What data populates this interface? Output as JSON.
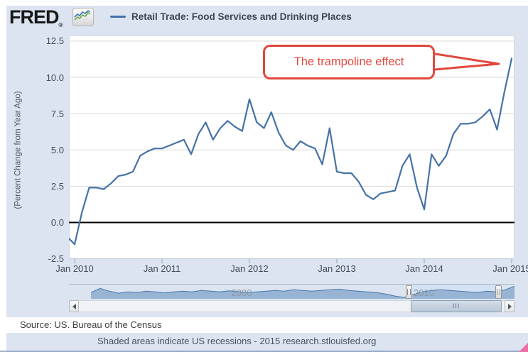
{
  "header": {
    "logo": "FRED",
    "registered_mark": "®",
    "legend_title": "Retail Trade: Food Services and Drinking Places"
  },
  "annotation": {
    "text": "The trampoline effect",
    "color": "#e2473c"
  },
  "chart_data": {
    "type": "line",
    "title": "Retail Trade: Food Services and Drinking Places",
    "ylabel": "(Percent Change from Year Ago)",
    "ylim": [
      -2.5,
      12.5
    ],
    "grid": true,
    "line_color": "#4572a7",
    "frequency": "monthly",
    "x_start": "2009-12",
    "x_end": "2015-01",
    "x_tick_labels": [
      "Jan 2010",
      "Jan 2011",
      "Jan 2012",
      "Jan 2013",
      "Jan 2014",
      "Jan 2015"
    ],
    "y_ticks": [
      {
        "label": "12.5",
        "v": 12.5
      },
      {
        "label": "10.0",
        "v": 10.0
      },
      {
        "label": "7.5",
        "v": 7.5
      },
      {
        "label": "5.0",
        "v": 5.0
      },
      {
        "label": "2.5",
        "v": 2.5
      },
      {
        "label": "0.0",
        "v": 0.0
      },
      {
        "label": "-2.5",
        "v": -2.5
      }
    ],
    "values": [
      -1.0,
      -1.5,
      0.7,
      2.4,
      2.4,
      2.3,
      2.7,
      3.2,
      3.3,
      3.5,
      4.6,
      4.9,
      5.1,
      5.1,
      5.3,
      5.5,
      5.7,
      4.7,
      6.1,
      6.9,
      5.7,
      6.5,
      7.0,
      6.6,
      6.3,
      8.5,
      6.9,
      6.5,
      7.6,
      6.2,
      5.3,
      5.0,
      5.6,
      5.3,
      5.1,
      4.0,
      6.5,
      3.5,
      3.4,
      3.4,
      2.8,
      1.9,
      1.6,
      2.0,
      2.1,
      2.2,
      3.9,
      4.7,
      2.4,
      0.9,
      4.7,
      3.9,
      4.6,
      6.1,
      6.8,
      6.8,
      6.9,
      7.3,
      7.8,
      6.4,
      9.0,
      11.3
    ]
  },
  "navigator": {
    "decade_labels": [
      "2000",
      "2010"
    ],
    "range_start": "1992",
    "range_end": "2015",
    "values": [
      0.45,
      0.75,
      0.55,
      0.4,
      0.5,
      0.45,
      0.55,
      0.5,
      0.42,
      0.5,
      0.55,
      0.5,
      0.6,
      0.55,
      0.5,
      0.58,
      0.52,
      0.45,
      0.5,
      0.55,
      0.6,
      0.55,
      0.65,
      0.6,
      0.55,
      0.6,
      0.65,
      0.7,
      0.6,
      0.55,
      0.5,
      0.45,
      0.35,
      0.2,
      0.1,
      0.3,
      0.5,
      0.6,
      0.65,
      0.6,
      0.55,
      0.5,
      0.45,
      0.55,
      0.5,
      0.65,
      0.9
    ],
    "scrollbar_grip": "III"
  },
  "footer": {
    "source": "Source: US. Bureau of the Census",
    "note": "Shaded areas indicate US recessions - 2015 research.stlouisfed.org"
  }
}
